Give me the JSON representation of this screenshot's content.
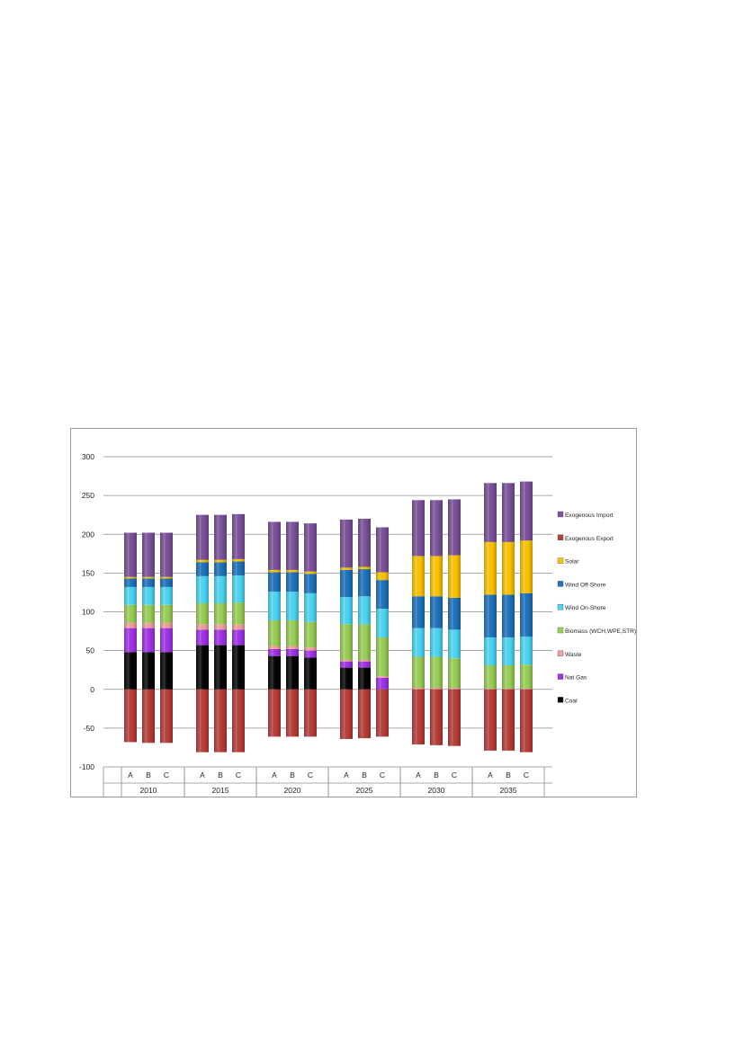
{
  "chart_data": {
    "type": "bar",
    "stacked": true,
    "groups": [
      "2010",
      "2015",
      "2020",
      "2025",
      "2030",
      "2035"
    ],
    "scenarios": [
      "A",
      "B",
      "C"
    ],
    "ylim": [
      -100,
      300
    ],
    "yticks": [
      300,
      250,
      200,
      150,
      100,
      50,
      0,
      -50,
      -100
    ],
    "grid": true,
    "legend_position": "right",
    "series": [
      {
        "name": "Coal",
        "color": "#050505",
        "values": [
          48,
          48,
          48,
          57,
          57,
          57,
          43,
          43,
          41,
          28,
          28,
          0,
          0,
          0,
          0,
          0,
          0,
          0
        ]
      },
      {
        "name": "Nat Gas",
        "color": "#a233e8",
        "values": [
          31,
          31,
          31,
          20,
          20,
          20,
          9,
          9,
          9,
          8,
          8,
          15,
          0,
          0,
          0,
          0,
          0,
          0
        ]
      },
      {
        "name": "Waste",
        "color": "#f3a39f",
        "values": [
          7,
          7,
          7,
          7,
          7,
          7,
          4,
          4,
          4,
          2,
          2,
          2,
          2,
          2,
          2,
          1,
          1,
          1
        ]
      },
      {
        "name": "Biomass (WCH,WPE,STR)",
        "color": "#9bd157",
        "values": [
          23,
          23,
          23,
          27,
          27,
          28,
          33,
          33,
          33,
          46,
          46,
          50,
          40,
          40,
          38,
          30,
          30,
          31
        ]
      },
      {
        "name": "Wind On-Shore",
        "color": "#4ed8f5",
        "values": [
          23,
          23,
          23,
          35,
          35,
          35,
          37,
          37,
          37,
          35,
          36,
          37,
          37,
          37,
          37,
          36,
          36,
          36
        ]
      },
      {
        "name": "Wind Off-Shore",
        "color": "#1f74be",
        "values": [
          11,
          11,
          11,
          18,
          18,
          18,
          25,
          25,
          25,
          35,
          35,
          37,
          41,
          41,
          41,
          55,
          55,
          56
        ]
      },
      {
        "name": "Solar",
        "color": "#ffc600",
        "values": [
          2,
          2,
          2,
          3,
          3,
          3,
          3,
          3,
          3,
          3,
          3,
          10,
          52,
          52,
          55,
          68,
          68,
          68
        ]
      },
      {
        "name": "Exogenous Import",
        "color": "#7b539c",
        "values": [
          57,
          57,
          57,
          58,
          58,
          58,
          62,
          62,
          62,
          62,
          62,
          58,
          72,
          72,
          72,
          76,
          76,
          76
        ]
      },
      {
        "name": "Exogenous Export",
        "color": "#b83e39",
        "values": [
          -68,
          -69,
          -69,
          -81,
          -81,
          -81,
          -61,
          -61,
          -61,
          -64,
          -63,
          -61,
          -71,
          -72,
          -73,
          -79,
          -79,
          -81
        ]
      }
    ]
  }
}
